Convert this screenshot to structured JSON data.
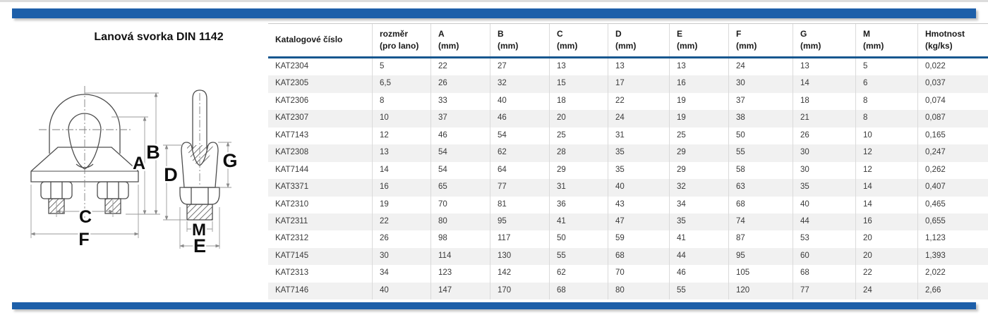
{
  "page": {
    "title": "Lanová svorka DIN 1142"
  },
  "colors": {
    "accent_bar": "#1d5fa9",
    "header_underline": "#17578f",
    "row_alt_background": "#f1f1f1"
  },
  "drawing": {
    "description": "wire-rope-clamp-front-and-side-view",
    "labels": {
      "A": "A",
      "B": "B",
      "C": "C",
      "D": "D",
      "E": "E",
      "F": "F",
      "G": "G",
      "M": "M"
    }
  },
  "table": {
    "columns": [
      {
        "line1": "Katalogové číslo",
        "line2": ""
      },
      {
        "line1": "rozměr",
        "line2": "(pro lano)"
      },
      {
        "line1": "A",
        "line2": "(mm)"
      },
      {
        "line1": "B",
        "line2": "(mm)"
      },
      {
        "line1": "C",
        "line2": "(mm)"
      },
      {
        "line1": "D",
        "line2": "(mm)"
      },
      {
        "line1": "E",
        "line2": "(mm)"
      },
      {
        "line1": "F",
        "line2": "(mm)"
      },
      {
        "line1": "G",
        "line2": "(mm)"
      },
      {
        "line1": "M",
        "line2": "(mm)"
      },
      {
        "line1": "Hmotnost",
        "line2": "(kg/ks)"
      }
    ],
    "rows": [
      [
        "KAT2304",
        "5",
        "22",
        "27",
        "13",
        "13",
        "13",
        "24",
        "13",
        "5",
        "0,022"
      ],
      [
        "KAT2305",
        "6,5",
        "26",
        "32",
        "15",
        "17",
        "16",
        "30",
        "14",
        "6",
        "0,037"
      ],
      [
        "KAT2306",
        "8",
        "33",
        "40",
        "18",
        "22",
        "19",
        "37",
        "18",
        "8",
        "0,074"
      ],
      [
        "KAT2307",
        "10",
        "37",
        "46",
        "20",
        "24",
        "19",
        "38",
        "21",
        "8",
        "0,087"
      ],
      [
        "KAT7143",
        "12",
        "46",
        "54",
        "25",
        "31",
        "25",
        "50",
        "26",
        "10",
        "0,165"
      ],
      [
        "KAT2308",
        "13",
        "54",
        "62",
        "28",
        "35",
        "29",
        "55",
        "30",
        "12",
        "0,247"
      ],
      [
        "KAT7144",
        "14",
        "54",
        "64",
        "29",
        "35",
        "29",
        "58",
        "30",
        "12",
        "0,262"
      ],
      [
        "KAT3371",
        "16",
        "65",
        "77",
        "31",
        "40",
        "32",
        "63",
        "35",
        "14",
        "0,407"
      ],
      [
        "KAT2310",
        "19",
        "70",
        "81",
        "36",
        "43",
        "34",
        "68",
        "40",
        "14",
        "0,465"
      ],
      [
        "KAT2311",
        "22",
        "80",
        "95",
        "41",
        "47",
        "35",
        "74",
        "44",
        "16",
        "0,655"
      ],
      [
        "KAT2312",
        "26",
        "98",
        "117",
        "50",
        "59",
        "41",
        "87",
        "53",
        "20",
        "1,123"
      ],
      [
        "KAT7145",
        "30",
        "114",
        "130",
        "55",
        "68",
        "44",
        "95",
        "60",
        "20",
        "1,393"
      ],
      [
        "KAT2313",
        "34",
        "123",
        "142",
        "62",
        "70",
        "46",
        "105",
        "68",
        "22",
        "2,022"
      ],
      [
        "KAT7146",
        "40",
        "147",
        "170",
        "68",
        "80",
        "55",
        "120",
        "77",
        "24",
        "2,66"
      ]
    ]
  }
}
